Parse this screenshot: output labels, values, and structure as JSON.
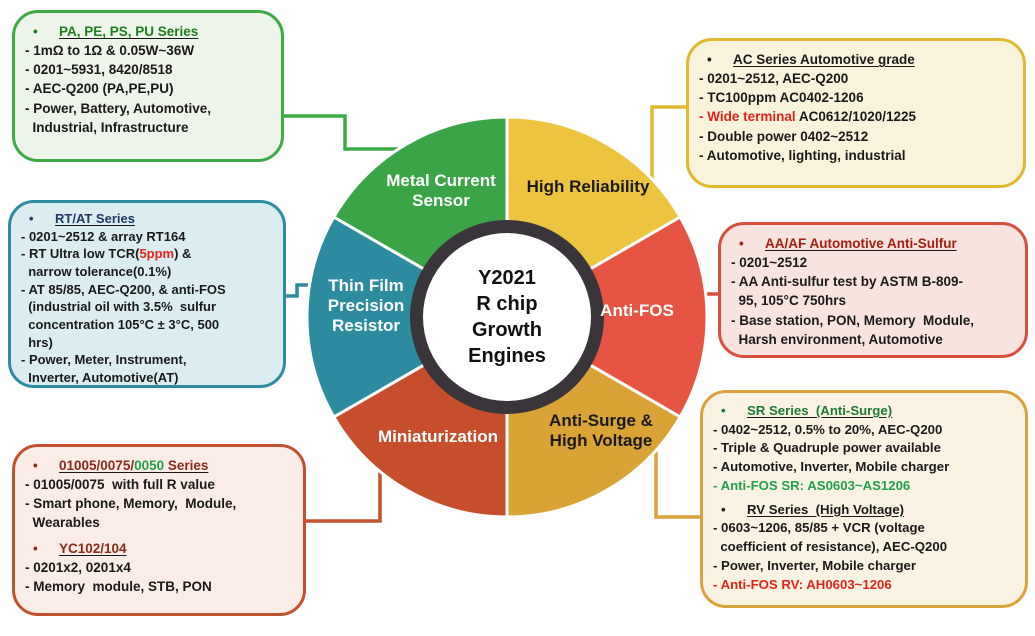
{
  "center": {
    "label": "Y2021\nR chip\nGrowth\nEngines"
  },
  "wheel": {
    "ring_color": "#39353a",
    "center_bg": "#ffffff",
    "segments": [
      {
        "id": "metal-current-sensor",
        "label": "Metal Current\nSensor",
        "color": "#3aa447",
        "text_color": "#ffffff"
      },
      {
        "id": "high-reliability",
        "label": "High Reliability",
        "color": "#ecc440",
        "text_color": "#1a1a1a"
      },
      {
        "id": "anti-fos",
        "label": "Anti-FOS",
        "color": "#e65544",
        "text_color": "#ffffff"
      },
      {
        "id": "anti-surge-high-voltage",
        "label": "Anti-Surge &\nHigh Voltage",
        "color": "#d9a435",
        "text_color": "#1a1a1a"
      },
      {
        "id": "miniaturization",
        "label": "Miniaturization",
        "color": "#c74e2d",
        "text_color": "#ffffff"
      },
      {
        "id": "thin-film-precision-resistor",
        "label": "Thin Film\nPrecision\nResistor",
        "color": "#2d8ba0",
        "text_color": "#ffffff"
      }
    ]
  },
  "boxes": [
    {
      "id": "pa-series",
      "border": "#3cab43",
      "bg": "#edf4e9",
      "blocks": [
        {
          "type": "title",
          "runs": [
            [
              "PA, PE, PS, PU Series",
              "#1e7e1e"
            ]
          ]
        },
        {
          "type": "line",
          "runs": [
            [
              "- 1mΩ to 1Ω & 0.05W~36W",
              "#1a1a1a"
            ]
          ]
        },
        {
          "type": "line",
          "runs": [
            [
              "- 0201~5931, 8420/8518",
              "#1a1a1a"
            ]
          ]
        },
        {
          "type": "line",
          "runs": [
            [
              "- AEC-Q200 (PA,PE,PU)",
              "#1a1a1a"
            ]
          ]
        },
        {
          "type": "line",
          "runs": [
            [
              "- Power, Battery, Automotive,",
              "#1a1a1a"
            ]
          ]
        },
        {
          "type": "line",
          "runs": [
            [
              "  Industrial, Infrastructure",
              "#1a1a1a"
            ]
          ]
        }
      ]
    },
    {
      "id": "rt-at-series",
      "border": "#2e8ca0",
      "bg": "#dcedf2",
      "blocks": [
        {
          "type": "title",
          "runs": [
            [
              "RT/AT Series",
              "#1f3864"
            ]
          ]
        },
        {
          "type": "line",
          "runs": [
            [
              "- 0201~2512 & array RT164",
              "#1a1a1a"
            ]
          ]
        },
        {
          "type": "line",
          "runs": [
            [
              "- RT Ultra low TCR(",
              "#1a1a1a"
            ],
            [
              "5ppm",
              "#e1251b"
            ],
            [
              ") &",
              "#1a1a1a"
            ]
          ]
        },
        {
          "type": "line",
          "runs": [
            [
              "  narrow tolerance(0.1%)",
              "#1a1a1a"
            ]
          ]
        },
        {
          "type": "line",
          "runs": [
            [
              "- AT 85/85, AEC-Q200, & anti-FOS",
              "#1a1a1a"
            ]
          ]
        },
        {
          "type": "line",
          "runs": [
            [
              "  (industrial oil with 3.5%  sulfur",
              "#1a1a1a"
            ]
          ]
        },
        {
          "type": "line",
          "runs": [
            [
              "  concentration 105°C ± 3°C, 500",
              "#1a1a1a"
            ]
          ]
        },
        {
          "type": "line",
          "runs": [
            [
              "  hrs)",
              "#1a1a1a"
            ]
          ]
        },
        {
          "type": "line",
          "runs": [
            [
              "- Power, Meter, Instrument,",
              "#1a1a1a"
            ]
          ]
        },
        {
          "type": "line",
          "runs": [
            [
              "  Inverter, Automotive(AT)",
              "#1a1a1a"
            ]
          ]
        }
      ]
    },
    {
      "id": "mini-series",
      "border": "#c2512d",
      "bg": "#faece7",
      "blocks": [
        {
          "type": "title",
          "runs": [
            [
              "01005/0075/",
              "#8b2a1a"
            ],
            [
              "0050",
              "#21a14d"
            ],
            [
              " Series",
              "#8b2a1a"
            ]
          ]
        },
        {
          "type": "line",
          "runs": [
            [
              "- 01005/0075  with full R value",
              "#1a1a1a"
            ]
          ]
        },
        {
          "type": "line",
          "runs": [
            [
              "- Smart phone, Memory,  Module,",
              "#1a1a1a"
            ]
          ]
        },
        {
          "type": "line",
          "runs": [
            [
              "  Wearables",
              "#1a1a1a"
            ]
          ]
        },
        {
          "type": "title",
          "gap": 6,
          "runs": [
            [
              "YC102/104",
              "#8b2a1a"
            ]
          ]
        },
        {
          "type": "line",
          "runs": [
            [
              "- 0201x2, 0201x4",
              "#1a1a1a"
            ]
          ]
        },
        {
          "type": "line",
          "runs": [
            [
              "- Memory  module, STB, PON",
              "#1a1a1a"
            ]
          ]
        }
      ]
    },
    {
      "id": "ac-series",
      "border": "#e0b92f",
      "bg": "#faf3dc",
      "blocks": [
        {
          "type": "title",
          "runs": [
            [
              "AC Series Automotive grade",
              "#1a1a1a"
            ]
          ]
        },
        {
          "type": "line",
          "runs": [
            [
              "- 0201~2512, AEC-Q200",
              "#1a1a1a"
            ]
          ]
        },
        {
          "type": "line",
          "runs": [
            [
              "- TC100ppm AC0402-1206",
              "#1a1a1a"
            ]
          ]
        },
        {
          "type": "line",
          "runs": [
            [
              "- ",
              "#e1251b"
            ],
            [
              "Wide terminal",
              "#e1251b"
            ],
            [
              " AC0612/1020/1225",
              "#1a1a1a"
            ]
          ]
        },
        {
          "type": "line",
          "runs": [
            [
              "- Double power 0402~2512",
              "#1a1a1a"
            ]
          ]
        },
        {
          "type": "line",
          "runs": [
            [
              "- Automotive, lighting, industrial",
              "#1a1a1a"
            ]
          ]
        }
      ]
    },
    {
      "id": "aa-af-series",
      "border": "#d94f3d",
      "bg": "#f9e3de",
      "blocks": [
        {
          "type": "title",
          "runs": [
            [
              "AA/AF Automotive Anti-Sulfur",
              "#a31f10"
            ]
          ]
        },
        {
          "type": "line",
          "runs": [
            [
              "- 0201~2512",
              "#1a1a1a"
            ]
          ]
        },
        {
          "type": "line",
          "runs": [
            [
              "- AA Anti-sulfur test by ASTM B-809-",
              "#1a1a1a"
            ]
          ]
        },
        {
          "type": "line",
          "runs": [
            [
              "  95, 105°C 750hrs",
              "#1a1a1a"
            ]
          ]
        },
        {
          "type": "line",
          "runs": [
            [
              "- Base station, PON, Memory  Module,",
              "#1a1a1a"
            ]
          ]
        },
        {
          "type": "line",
          "runs": [
            [
              "  Harsh environment, Automotive",
              "#1a1a1a"
            ]
          ]
        }
      ]
    },
    {
      "id": "sr-rv-series",
      "border": "#d9a23a",
      "bg": "#faf3e4",
      "blocks": [
        {
          "type": "title",
          "runs": [
            [
              "SR Series  (Anti-Surge)",
              "#1d7a33"
            ]
          ]
        },
        {
          "type": "line",
          "runs": [
            [
              "- 0402~2512, 0.5% to 20%, AEC-Q200",
              "#1a1a1a"
            ]
          ]
        },
        {
          "type": "line",
          "runs": [
            [
              "- Triple & Quadruple power available",
              "#1a1a1a"
            ]
          ]
        },
        {
          "type": "line",
          "runs": [
            [
              "- Automotive, Inverter, Mobile charger",
              "#1a1a1a"
            ]
          ]
        },
        {
          "type": "line",
          "runs": [
            [
              "- Anti-FOS SR: AS0603~AS1206",
              "#21a14d"
            ]
          ]
        },
        {
          "type": "title",
          "gap": 5,
          "runs": [
            [
              "RV Series  (High Voltage)",
              "#1a1a1a"
            ]
          ]
        },
        {
          "type": "line",
          "runs": [
            [
              "- 0603~1206, 85/85 + VCR (voltage",
              "#1a1a1a"
            ]
          ]
        },
        {
          "type": "line",
          "runs": [
            [
              "  coefficient of resistance), AEC-Q200",
              "#1a1a1a"
            ]
          ]
        },
        {
          "type": "line",
          "runs": [
            [
              "- Power, Inverter, Mobile charger",
              "#1a1a1a"
            ]
          ]
        },
        {
          "type": "line",
          "runs": [
            [
              "- Anti-FOS RV: AH0603~1206",
              "#e1251b"
            ]
          ]
        }
      ]
    }
  ]
}
